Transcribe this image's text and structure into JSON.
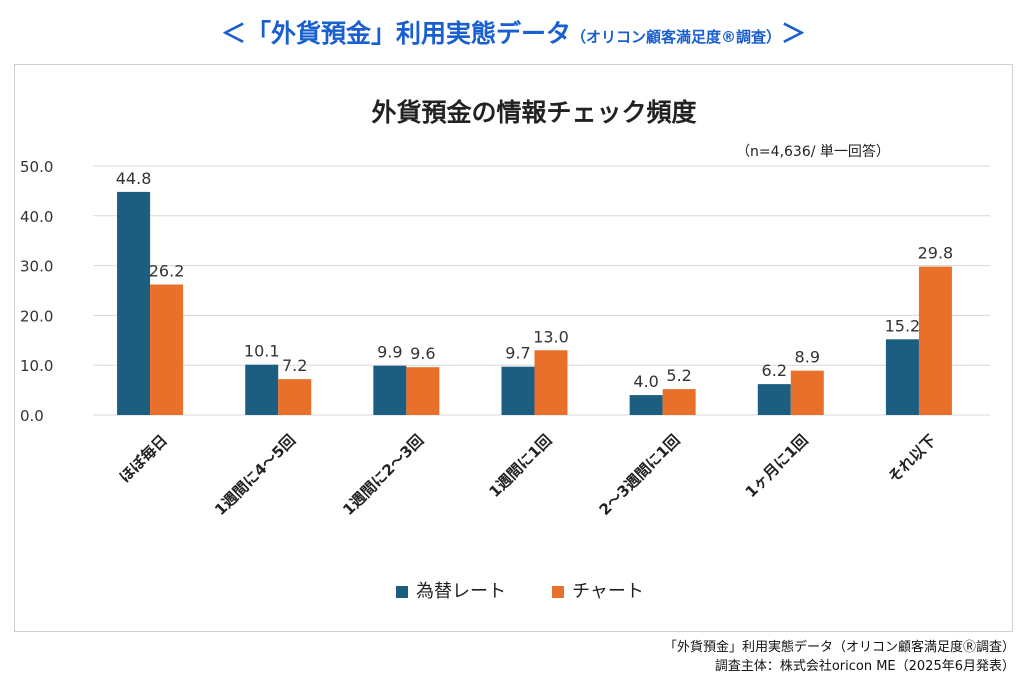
{
  "page_title": {
    "main": "＜「外貨預金」利用実態データ",
    "sub": "（オリコン顧客満足度®調査）",
    "close": "＞"
  },
  "chart_data": {
    "type": "bar",
    "title": "外貨預金の情報チェック頻度",
    "note": "（n=4,636/ 単一回答）",
    "categories": [
      "ほぼ毎日",
      "1週間に4～5回",
      "1週間に2～3回",
      "1週間に1回",
      "2～3週間に1回",
      "1ヶ月に1回",
      "それ以下"
    ],
    "series": [
      {
        "name": "為替レート",
        "color": "#1b5e80",
        "values": [
          44.8,
          10.1,
          9.9,
          9.7,
          4.0,
          6.2,
          15.2
        ]
      },
      {
        "name": "チャート",
        "color": "#e8702a",
        "values": [
          26.2,
          7.2,
          9.6,
          13.0,
          5.2,
          8.9,
          29.8
        ]
      }
    ],
    "y_ticks": [
      "50.0",
      "40.0",
      "30.0",
      "20.0",
      "10.0",
      "0.0"
    ],
    "ylim": [
      0,
      50
    ],
    "grid": true,
    "legend_position": "bottom"
  },
  "source": {
    "line1": "「外貨預金」利用実態データ（オリコン顧客満足度Ⓡ調査）",
    "line2": "調査主体：株式会社oricon ME（2025年6月発表）"
  }
}
